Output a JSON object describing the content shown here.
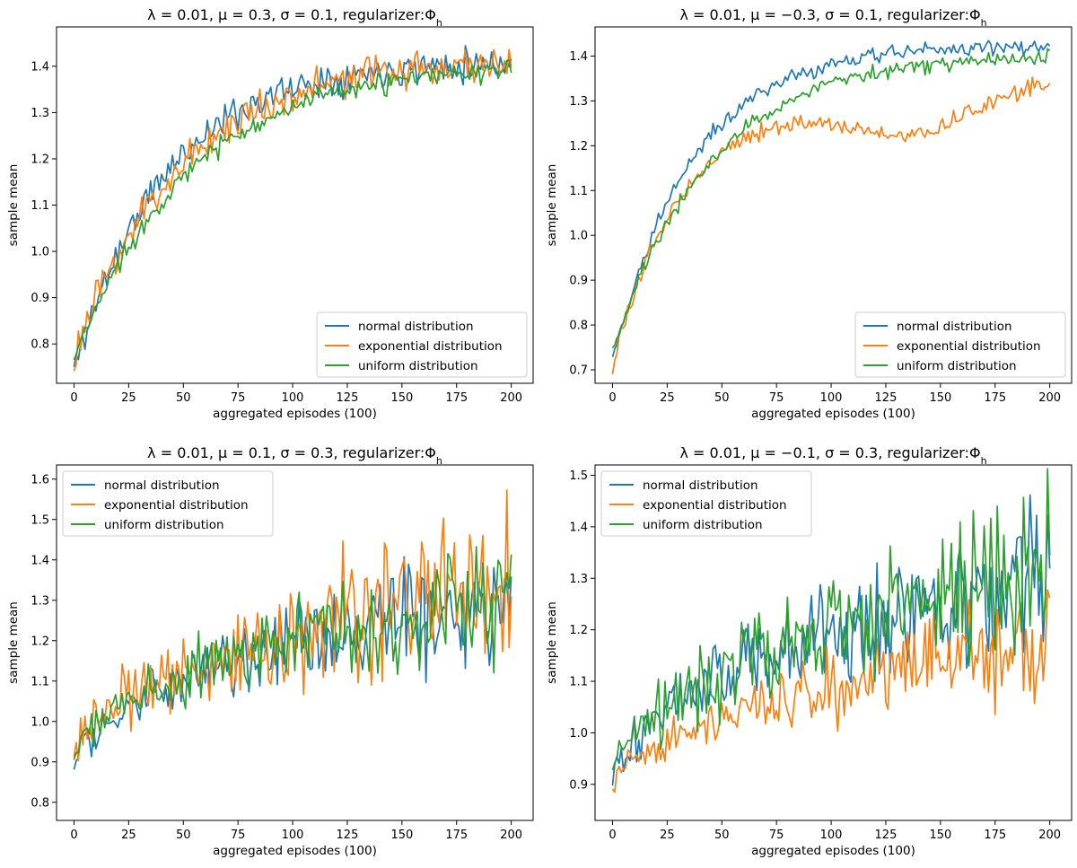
{
  "figure": {
    "background": "#ffffff"
  },
  "chart_data": [
    {
      "type": "line",
      "title": "λ = 0.01, μ = 0.3, σ = 0.1, regularizer:Φ_h",
      "title_parts": {
        "lead": "λ = 0.01, μ = 0.3, σ = 0.1, regularizer:Φ",
        "sub": "h"
      },
      "xlabel": "aggregated episodes (100)",
      "ylabel": "sample mean",
      "xlim": [
        -8,
        210
      ],
      "ylim": [
        0.715,
        1.485
      ],
      "xticks": [
        0,
        25,
        50,
        75,
        100,
        125,
        150,
        175,
        200
      ],
      "yticks": [
        0.8,
        0.9,
        1.0,
        1.1,
        1.2,
        1.3,
        1.4
      ],
      "legend": "lower-right",
      "grid": false,
      "series": [
        {
          "name": "normal distribution",
          "color": "#1f77b4",
          "model": "sat",
          "start": 0.745,
          "end": 1.415,
          "tau": 42,
          "noise": 0.018,
          "seed": 11
        },
        {
          "name": "exponential distribution",
          "color": "#ff7f0e",
          "model": "sat",
          "start": 0.77,
          "end": 1.42,
          "tau": 48,
          "noise": 0.02,
          "seed": 23
        },
        {
          "name": "uniform distribution",
          "color": "#2ca02c",
          "model": "sat",
          "start": 0.765,
          "end": 1.405,
          "tau": 52,
          "noise": 0.011,
          "seed": 37
        }
      ]
    },
    {
      "type": "line",
      "title": "λ = 0.01, μ = −0.3, σ = 0.1, regularizer:Φ_h",
      "title_parts": {
        "lead": "λ = 0.01, μ = −0.3, σ = 0.1, regularizer:Φ",
        "sub": "h"
      },
      "xlabel": "aggregated episodes (100)",
      "ylabel": "sample mean",
      "xlim": [
        -8,
        210
      ],
      "ylim": [
        0.67,
        1.465
      ],
      "xticks": [
        0,
        25,
        50,
        75,
        100,
        125,
        150,
        175,
        200
      ],
      "yticks": [
        0.7,
        0.8,
        0.9,
        1.0,
        1.1,
        1.2,
        1.3,
        1.4
      ],
      "legend": "lower-right",
      "grid": false,
      "series": [
        {
          "name": "normal distribution",
          "color": "#1f77b4",
          "model": "sat",
          "start": 0.72,
          "end": 1.425,
          "tau": 36,
          "noise": 0.009,
          "seed": 41
        },
        {
          "name": "exponential distribution",
          "color": "#ff7f0e",
          "model": "hump",
          "start": 0.7,
          "end": 1.31,
          "tau": 30,
          "dip": 0.07,
          "noise": 0.009,
          "seed": 53
        },
        {
          "name": "uniform distribution",
          "color": "#2ca02c",
          "model": "sat",
          "start": 0.74,
          "end": 1.405,
          "tau": 44,
          "noise": 0.009,
          "seed": 67
        }
      ]
    },
    {
      "type": "line",
      "title": "λ = 0.01, μ = 0.1, σ = 0.3, regularizer:Φ_h",
      "title_parts": {
        "lead": "λ = 0.01, μ = 0.1, σ = 0.3, regularizer:Φ",
        "sub": "h"
      },
      "xlabel": "aggregated episodes (100)",
      "ylabel": "sample mean",
      "xlim": [
        -8,
        210
      ],
      "ylim": [
        0.755,
        1.635
      ],
      "xticks": [
        0,
        25,
        50,
        75,
        100,
        125,
        150,
        175,
        200
      ],
      "yticks": [
        0.8,
        0.9,
        1.0,
        1.1,
        1.2,
        1.3,
        1.4,
        1.5,
        1.6
      ],
      "legend": "upper-left",
      "grid": false,
      "series": [
        {
          "name": "normal distribution",
          "color": "#1f77b4",
          "model": "lin",
          "start": 0.88,
          "end": 1.31,
          "noise": 0.06,
          "seed": 71
        },
        {
          "name": "exponential distribution",
          "color": "#ff7f0e",
          "model": "lin",
          "start": 0.91,
          "end": 1.33,
          "noise": 0.085,
          "seed": 83
        },
        {
          "name": "uniform distribution",
          "color": "#2ca02c",
          "model": "lin",
          "start": 0.9,
          "end": 1.32,
          "noise": 0.06,
          "seed": 97
        }
      ]
    },
    {
      "type": "line",
      "title": "λ = 0.01, μ = −0.1, σ = 0.3, regularizer:Φ_h",
      "title_parts": {
        "lead": "λ = 0.01, μ = −0.1, σ = 0.3, regularizer:Φ",
        "sub": "h"
      },
      "xlabel": "aggregated episodes (100)",
      "ylabel": "sample mean",
      "xlim": [
        -8,
        210
      ],
      "ylim": [
        0.83,
        1.52
      ],
      "xticks": [
        0,
        25,
        50,
        75,
        100,
        125,
        150,
        175,
        200
      ],
      "yticks": [
        0.9,
        1.0,
        1.1,
        1.2,
        1.3,
        1.4,
        1.5
      ],
      "legend": "upper-left",
      "grid": false,
      "series": [
        {
          "name": "normal distribution",
          "color": "#1f77b4",
          "model": "lin",
          "start": 0.9,
          "end": 1.32,
          "noise": 0.06,
          "seed": 101
        },
        {
          "name": "exponential distribution",
          "color": "#ff7f0e",
          "model": "lin",
          "start": 0.88,
          "end": 1.18,
          "noise": 0.04,
          "seed": 113
        },
        {
          "name": "uniform distribution",
          "color": "#2ca02c",
          "model": "lin",
          "start": 0.9,
          "end": 1.32,
          "noise": 0.065,
          "seed": 127
        }
      ]
    }
  ]
}
